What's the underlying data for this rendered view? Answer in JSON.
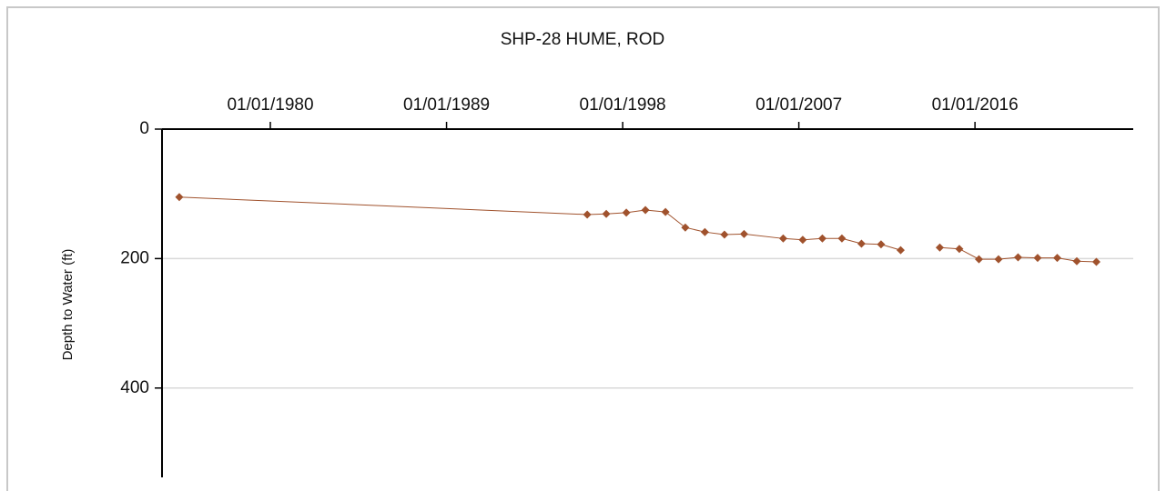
{
  "chart_data": {
    "type": "line",
    "title": "SHP-28  HUME, ROD",
    "y_label": "Depth to Water (ft)",
    "x": [
      "1975-05-08",
      "1996-03-10",
      "1997-03-01",
      "1998-03-10",
      "1999-03-01",
      "2000-03-10",
      "2001-03-15",
      "2002-03-15",
      "2003-03-15",
      "2004-03-15",
      "2006-03-15",
      "2007-03-15",
      "2008-03-15",
      "2009-03-15",
      "2010-03-15",
      "2011-03-15",
      "2012-03-15",
      null,
      "2014-03-15",
      "2015-03-15",
      "2016-03-15",
      "2017-03-15",
      "2018-03-15",
      "2019-03-15",
      "2020-03-15",
      "2021-03-15",
      "2022-03-15"
    ],
    "series": [
      {
        "name": "Depth to Water",
        "color": "#a0522d",
        "values": [
          105,
          132,
          131,
          129,
          125,
          128,
          152,
          159,
          163,
          162,
          169,
          171,
          169,
          169,
          177,
          178,
          187,
          null,
          183,
          185,
          201,
          201,
          198,
          199,
          199,
          204,
          205
        ]
      }
    ],
    "xlim": [
      "1974-06-20",
      "2024-02-01"
    ],
    "xticks": [
      {
        "value": "1980-01-01",
        "label": "01/01/1980"
      },
      {
        "value": "1989-01-01",
        "label": "01/01/1989"
      },
      {
        "value": "1998-01-01",
        "label": "01/01/1998"
      },
      {
        "value": "2007-01-01",
        "label": "01/01/2007"
      },
      {
        "value": "2016-01-01",
        "label": "01/01/2016"
      }
    ],
    "ylim": [
      0,
      538
    ],
    "yticks": [
      0,
      200,
      400
    ],
    "y_inverted": true,
    "grid": true
  }
}
